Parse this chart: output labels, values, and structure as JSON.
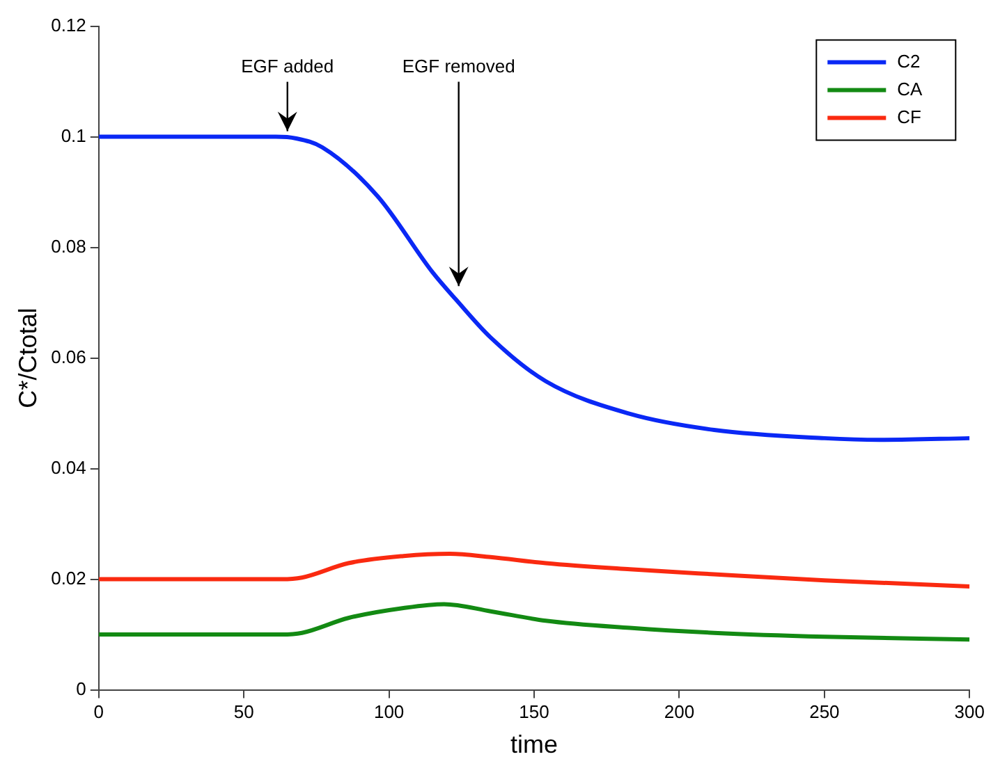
{
  "chart_data": {
    "type": "line",
    "xlabel": "time",
    "ylabel": "C*/Ctotal",
    "xlim": [
      0,
      300
    ],
    "ylim": [
      0,
      0.12
    ],
    "xticks": [
      0,
      50,
      100,
      150,
      200,
      250,
      300
    ],
    "yticks": [
      0,
      0.02,
      0.04,
      0.06,
      0.08,
      0.1,
      0.12
    ],
    "grid": false,
    "legend": "top right",
    "marker": "none",
    "line_style": "solid",
    "annotations": [
      {
        "text": "EGF added",
        "x": 65,
        "y": 0.1
      },
      {
        "text": "EGF removed",
        "x": 124,
        "y": 0.072
      }
    ],
    "series": [
      {
        "name": "C2",
        "color": "#0a28f5",
        "x": [
          0,
          30,
          61,
          68,
          77,
          96,
          115,
          123,
          135,
          154,
          183,
          212,
          250,
          269,
          300
        ],
        "values": [
          0.1,
          0.1,
          0.1,
          0.0997,
          0.0981,
          0.0893,
          0.0755,
          0.0706,
          0.0637,
          0.0558,
          0.0499,
          0.047,
          0.0455,
          0.0452,
          0.0455
        ]
      },
      {
        "name": "CA",
        "color": "#138a13",
        "x": [
          0,
          30,
          63,
          70,
          86,
          105,
          119,
          135,
          154,
          183,
          212,
          250,
          300
        ],
        "values": [
          0.01,
          0.01,
          0.01,
          0.0103,
          0.013,
          0.0148,
          0.0155,
          0.0142,
          0.0125,
          0.0112,
          0.0103,
          0.0096,
          0.0091
        ]
      },
      {
        "name": "CF",
        "color": "#fa2a10",
        "x": [
          0,
          30,
          63,
          70,
          86,
          105,
          121,
          135,
          154,
          183,
          212,
          250,
          300
        ],
        "values": [
          0.02,
          0.02,
          0.02,
          0.0203,
          0.0229,
          0.0242,
          0.0246,
          0.024,
          0.0229,
          0.0218,
          0.0209,
          0.0198,
          0.0187
        ]
      }
    ]
  }
}
